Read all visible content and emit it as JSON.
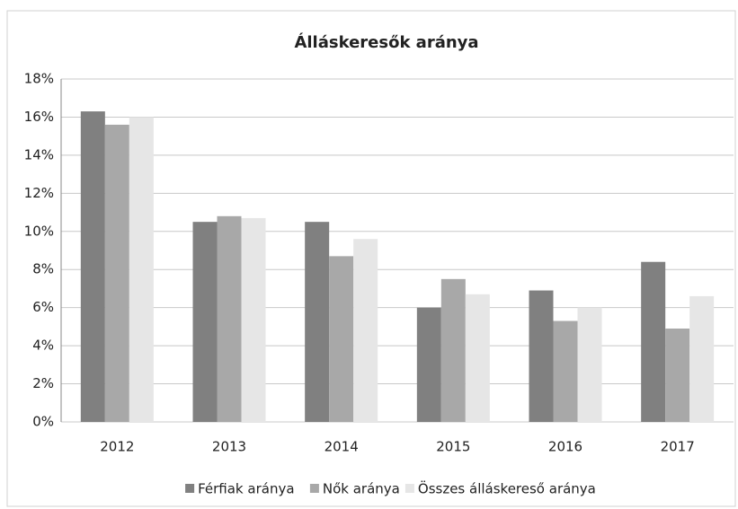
{
  "chart_data": {
    "type": "bar",
    "title": "Álláskeresők aránya",
    "categories": [
      "2012",
      "2013",
      "2014",
      "2015",
      "2016",
      "2017"
    ],
    "series": [
      {
        "name": "Férfiak aránya",
        "color": "#808080",
        "values": [
          16.3,
          10.5,
          10.5,
          6.0,
          6.9,
          8.4
        ]
      },
      {
        "name": "Nők aránya",
        "color": "#a8a8a8",
        "values": [
          15.6,
          10.8,
          8.7,
          7.5,
          5.3,
          4.9
        ]
      },
      {
        "name": "Összes álláskereső aránya",
        "color": "#e6e6e6",
        "values": [
          16.0,
          10.7,
          9.6,
          6.7,
          6.0,
          6.6
        ]
      }
    ],
    "ylim": [
      0,
      18
    ],
    "yticks": [
      {
        "value": 0,
        "label": "0%"
      },
      {
        "value": 2,
        "label": "2%"
      },
      {
        "value": 4,
        "label": "4%"
      },
      {
        "value": 6,
        "label": "6%"
      },
      {
        "value": 8,
        "label": "8%"
      },
      {
        "value": 10,
        "label": "10%"
      },
      {
        "value": 12,
        "label": "12%"
      },
      {
        "value": 14,
        "label": "14%"
      },
      {
        "value": 16,
        "label": "16%"
      },
      {
        "value": 18,
        "label": "18%"
      }
    ],
    "grid": true,
    "legend": "bottom"
  }
}
